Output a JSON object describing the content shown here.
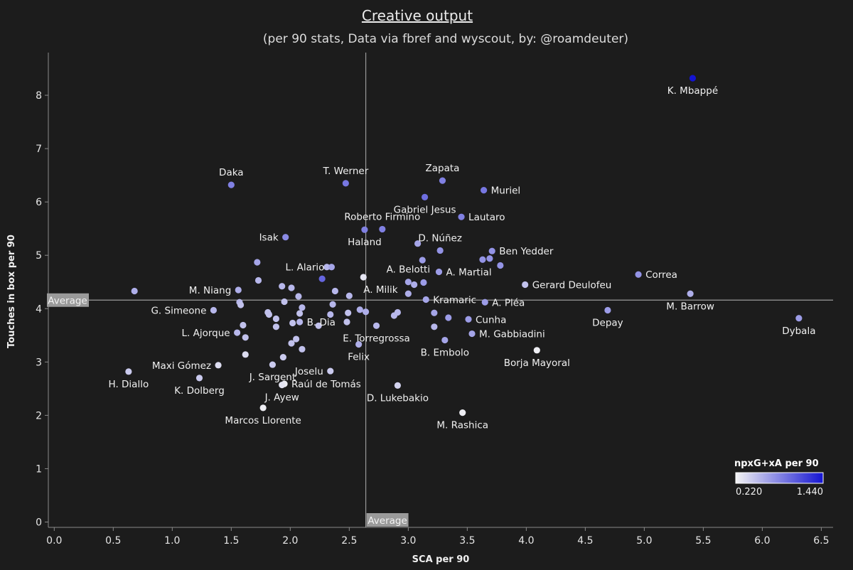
{
  "chart_data": {
    "type": "scatter",
    "title": "Creative output",
    "subtitle": "(per 90 stats, Data via fbref and wyscout, by: @roamdeuter)",
    "xlabel": "SCA per 90",
    "ylabel": "Touches in box per 90",
    "xlim": [
      -0.05,
      6.6
    ],
    "ylim": [
      -0.1,
      8.8
    ],
    "xticks": [
      "0.0",
      "0.5",
      "1.0",
      "1.5",
      "2.0",
      "2.5",
      "3.0",
      "3.5",
      "4.0",
      "4.5",
      "5.0",
      "5.5",
      "6.0",
      "6.5"
    ],
    "yticks": [
      "0",
      "1",
      "2",
      "3",
      "4",
      "5",
      "6",
      "7",
      "8"
    ],
    "average": {
      "x": 2.64,
      "y": 4.16,
      "label_x": "Average",
      "label_y": "Average"
    },
    "colors": {
      "background": "#1c1c1c",
      "low": "#f4f4f4",
      "high": "#1414d2",
      "grid_line": "#9a9a9a",
      "avg_box": "#9a9a9a"
    },
    "legend": {
      "title": "npxG+xA per 90",
      "min_label": "0.220",
      "max_label": "1.440",
      "min": 0.22,
      "max": 1.44,
      "placement": "bottom-right"
    },
    "points": [
      {
        "name": "K. Mbappé",
        "x": 5.41,
        "y": 8.32,
        "c": 1.44,
        "pos": "below"
      },
      {
        "name": "Daka",
        "x": 1.5,
        "y": 6.32,
        "c": 0.85,
        "pos": "above"
      },
      {
        "name": "T. Werner",
        "x": 2.47,
        "y": 6.35,
        "c": 0.9,
        "pos": "above"
      },
      {
        "name": "Zapata",
        "x": 3.29,
        "y": 6.4,
        "c": 0.85,
        "pos": "above"
      },
      {
        "name": "Muriel",
        "x": 3.64,
        "y": 6.22,
        "c": 0.9,
        "pos": "right"
      },
      {
        "name": "Gabriel Jesus",
        "x": 3.14,
        "y": 6.09,
        "c": 0.95,
        "pos": "below"
      },
      {
        "name": "Roberto Firmino",
        "x": 2.78,
        "y": 5.49,
        "c": 0.85,
        "pos": "above"
      },
      {
        "name": "Lautaro",
        "x": 3.45,
        "y": 5.72,
        "c": 0.85,
        "pos": "right"
      },
      {
        "name": "Isak",
        "x": 1.96,
        "y": 5.34,
        "c": 0.8,
        "pos": "left"
      },
      {
        "name": "Haland",
        "x": 2.63,
        "y": 5.48,
        "c": 0.85,
        "pos": "below"
      },
      {
        "name": "D. Núñez",
        "x": 3.27,
        "y": 5.09,
        "c": 0.75,
        "pos": "above"
      },
      {
        "name": "Ben Yedder",
        "x": 3.71,
        "y": 5.08,
        "c": 0.75,
        "pos": "right"
      },
      {
        "name": "Correa",
        "x": 4.95,
        "y": 4.64,
        "c": 0.75,
        "pos": "right"
      },
      {
        "name": "L. Alario",
        "x": 2.35,
        "y": 4.78,
        "c": 0.65,
        "pos": "left"
      },
      {
        "name": "A. Belotti",
        "x": 3.0,
        "y": 4.5,
        "c": 0.65,
        "pos": "above"
      },
      {
        "name": "A. Martial",
        "x": 3.26,
        "y": 4.69,
        "c": 0.7,
        "pos": "right"
      },
      {
        "name": "Gerard Deulofeu",
        "x": 3.99,
        "y": 4.45,
        "c": 0.5,
        "pos": "right"
      },
      {
        "name": "M. Niang",
        "x": 1.56,
        "y": 4.35,
        "c": 0.6,
        "pos": "left"
      },
      {
        "name": "A. Milik",
        "x": 2.62,
        "y": 4.59,
        "c": 0.3,
        "pos": "belowright"
      },
      {
        "name": "M. Barrow",
        "x": 5.39,
        "y": 4.28,
        "c": 0.6,
        "pos": "below"
      },
      {
        "name": "Kramaric",
        "x": 3.15,
        "y": 4.17,
        "c": 0.65,
        "pos": "right"
      },
      {
        "name": "A. Pléa",
        "x": 3.65,
        "y": 4.12,
        "c": 0.7,
        "pos": "right"
      },
      {
        "name": "G. Simeone",
        "x": 1.35,
        "y": 3.97,
        "c": 0.55,
        "pos": "left"
      },
      {
        "name": "Depay",
        "x": 4.69,
        "y": 3.97,
        "c": 0.7,
        "pos": "below"
      },
      {
        "name": "Dybala",
        "x": 6.31,
        "y": 3.82,
        "c": 0.7,
        "pos": "below"
      },
      {
        "name": "Cunha",
        "x": 3.51,
        "y": 3.8,
        "c": 0.7,
        "pos": "right"
      },
      {
        "name": "L. Ajorque",
        "x": 1.55,
        "y": 3.55,
        "c": 0.55,
        "pos": "left"
      },
      {
        "name": "B. Dia",
        "x": 2.08,
        "y": 3.75,
        "c": 0.55,
        "pos": "right"
      },
      {
        "name": "E. Torregrossa",
        "x": 2.73,
        "y": 3.68,
        "c": 0.55,
        "pos": "below"
      },
      {
        "name": "M. Gabbiadini",
        "x": 3.54,
        "y": 3.53,
        "c": 0.65,
        "pos": "right"
      },
      {
        "name": "B. Embolo",
        "x": 3.31,
        "y": 3.41,
        "c": 0.65,
        "pos": "below"
      },
      {
        "name": "Felix",
        "x": 2.58,
        "y": 3.33,
        "c": 0.6,
        "pos": "below"
      },
      {
        "name": "Borja Mayoral",
        "x": 4.09,
        "y": 3.22,
        "c": 0.25,
        "pos": "below"
      },
      {
        "name": "Maxi Gómez",
        "x": 1.39,
        "y": 2.94,
        "c": 0.35,
        "pos": "left"
      },
      {
        "name": "H. Diallo",
        "x": 0.63,
        "y": 2.82,
        "c": 0.45,
        "pos": "below"
      },
      {
        "name": "J. Sargent",
        "x": 1.85,
        "y": 2.95,
        "c": 0.45,
        "pos": "below"
      },
      {
        "name": "Joselu",
        "x": 2.34,
        "y": 2.83,
        "c": 0.45,
        "pos": "left"
      },
      {
        "name": "K. Dolberg",
        "x": 1.23,
        "y": 2.7,
        "c": 0.45,
        "pos": "below"
      },
      {
        "name": "Raúl de Tomás",
        "x": 1.95,
        "y": 2.59,
        "c": 0.25,
        "pos": "right"
      },
      {
        "name": "D. Lukebakio",
        "x": 2.91,
        "y": 2.56,
        "c": 0.4,
        "pos": "below"
      },
      {
        "name": "J. Ayew",
        "x": 1.93,
        "y": 2.57,
        "c": 0.3,
        "pos": "below"
      },
      {
        "name": "Marcos Llorente",
        "x": 1.77,
        "y": 2.14,
        "c": 0.25,
        "pos": "below"
      },
      {
        "name": "M. Rashica",
        "x": 3.46,
        "y": 2.05,
        "c": 0.25,
        "pos": "below"
      }
    ],
    "unlabeled": [
      {
        "x": 0.68,
        "y": 4.33,
        "c": 0.6
      },
      {
        "x": 1.72,
        "y": 4.87,
        "c": 0.65
      },
      {
        "x": 1.73,
        "y": 4.53,
        "c": 0.55
      },
      {
        "x": 1.57,
        "y": 4.12,
        "c": 0.55
      },
      {
        "x": 1.58,
        "y": 4.07,
        "c": 0.5
      },
      {
        "x": 1.6,
        "y": 3.69,
        "c": 0.5
      },
      {
        "x": 1.62,
        "y": 3.46,
        "c": 0.5
      },
      {
        "x": 1.62,
        "y": 3.14,
        "c": 0.35
      },
      {
        "x": 1.81,
        "y": 3.93,
        "c": 0.5
      },
      {
        "x": 1.82,
        "y": 3.89,
        "c": 0.5
      },
      {
        "x": 1.88,
        "y": 3.81,
        "c": 0.5
      },
      {
        "x": 1.88,
        "y": 3.66,
        "c": 0.5
      },
      {
        "x": 1.93,
        "y": 4.42,
        "c": 0.55
      },
      {
        "x": 1.95,
        "y": 4.13,
        "c": 0.5
      },
      {
        "x": 1.94,
        "y": 3.09,
        "c": 0.45
      },
      {
        "x": 2.01,
        "y": 4.39,
        "c": 0.55
      },
      {
        "x": 2.02,
        "y": 3.73,
        "c": 0.5
      },
      {
        "x": 2.01,
        "y": 3.35,
        "c": 0.5
      },
      {
        "x": 2.05,
        "y": 3.43,
        "c": 0.5
      },
      {
        "x": 2.07,
        "y": 4.23,
        "c": 0.55
      },
      {
        "x": 2.08,
        "y": 3.91,
        "c": 0.5
      },
      {
        "x": 2.1,
        "y": 4.02,
        "c": 0.55
      },
      {
        "x": 2.1,
        "y": 3.24,
        "c": 0.5
      },
      {
        "x": 2.24,
        "y": 3.68,
        "c": 0.5
      },
      {
        "x": 2.27,
        "y": 4.56,
        "c": 1.0
      },
      {
        "x": 2.31,
        "y": 4.78,
        "c": 0.55
      },
      {
        "x": 2.34,
        "y": 3.89,
        "c": 0.55
      },
      {
        "x": 2.36,
        "y": 4.08,
        "c": 0.55
      },
      {
        "x": 2.38,
        "y": 4.33,
        "c": 0.55
      },
      {
        "x": 2.48,
        "y": 3.75,
        "c": 0.5
      },
      {
        "x": 2.49,
        "y": 3.92,
        "c": 0.5
      },
      {
        "x": 2.5,
        "y": 4.24,
        "c": 0.55
      },
      {
        "x": 2.59,
        "y": 3.98,
        "c": 0.6
      },
      {
        "x": 2.64,
        "y": 3.94,
        "c": 0.6
      },
      {
        "x": 2.88,
        "y": 3.87,
        "c": 0.55
      },
      {
        "x": 2.91,
        "y": 3.93,
        "c": 0.55
      },
      {
        "x": 3.0,
        "y": 4.28,
        "c": 0.6
      },
      {
        "x": 3.05,
        "y": 4.45,
        "c": 0.6
      },
      {
        "x": 3.08,
        "y": 5.22,
        "c": 0.65
      },
      {
        "x": 3.12,
        "y": 4.91,
        "c": 0.7
      },
      {
        "x": 3.13,
        "y": 4.49,
        "c": 0.7
      },
      {
        "x": 3.22,
        "y": 3.92,
        "c": 0.65
      },
      {
        "x": 3.22,
        "y": 3.66,
        "c": 0.55
      },
      {
        "x": 3.34,
        "y": 3.83,
        "c": 0.7
      },
      {
        "x": 3.63,
        "y": 4.92,
        "c": 0.75
      },
      {
        "x": 3.69,
        "y": 4.94,
        "c": 0.75
      },
      {
        "x": 3.78,
        "y": 4.81,
        "c": 0.75
      }
    ]
  }
}
